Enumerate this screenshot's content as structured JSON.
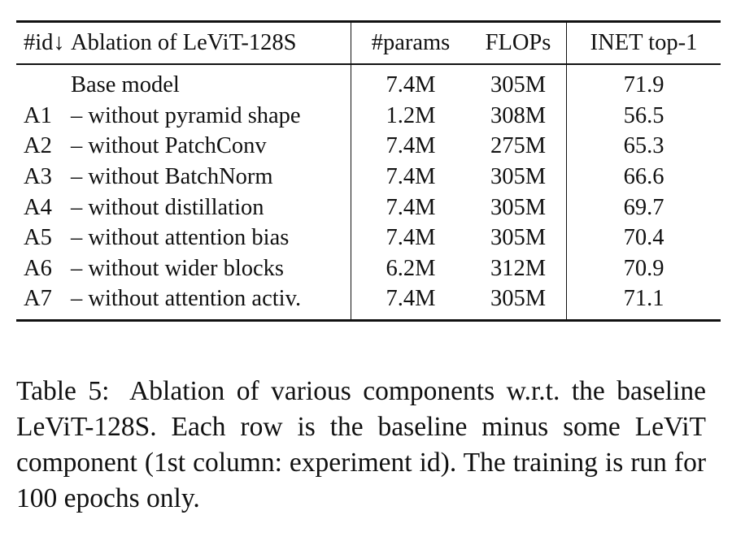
{
  "table": {
    "headers": {
      "id": "#id↓",
      "ablation": "Ablation of LeViT-128S",
      "params": "#params",
      "flops": "FLOPs",
      "top1": "INET top-1"
    },
    "rows": [
      {
        "id": "",
        "ablation": "Base model",
        "params": "7.4M",
        "flops": "305M",
        "top1": "71.9"
      },
      {
        "id": "A1",
        "ablation": "– without pyramid shape",
        "params": "1.2M",
        "flops": "308M",
        "top1": "56.5"
      },
      {
        "id": "A2",
        "ablation": "– without PatchConv",
        "params": "7.4M",
        "flops": "275M",
        "top1": "65.3"
      },
      {
        "id": "A3",
        "ablation": "– without BatchNorm",
        "params": "7.4M",
        "flops": "305M",
        "top1": "66.6"
      },
      {
        "id": "A4",
        "ablation": "– without distillation",
        "params": "7.4M",
        "flops": "305M",
        "top1": "69.7"
      },
      {
        "id": "A5",
        "ablation": "– without attention bias",
        "params": "7.4M",
        "flops": "305M",
        "top1": "70.4"
      },
      {
        "id": "A6",
        "ablation": "– without wider blocks",
        "params": "6.2M",
        "flops": "312M",
        "top1": "70.9"
      },
      {
        "id": "A7",
        "ablation": "– without attention activ.",
        "params": "7.4M",
        "flops": "305M",
        "top1": "71.1"
      }
    ]
  },
  "caption": {
    "label": "Table 5:",
    "text": "Ablation of various components w.r.t. the base­line LeViT-128S. Each row is the baseline minus some LeViT component (1st column: experiment id). The train­ing is run for 100 epochs only."
  }
}
